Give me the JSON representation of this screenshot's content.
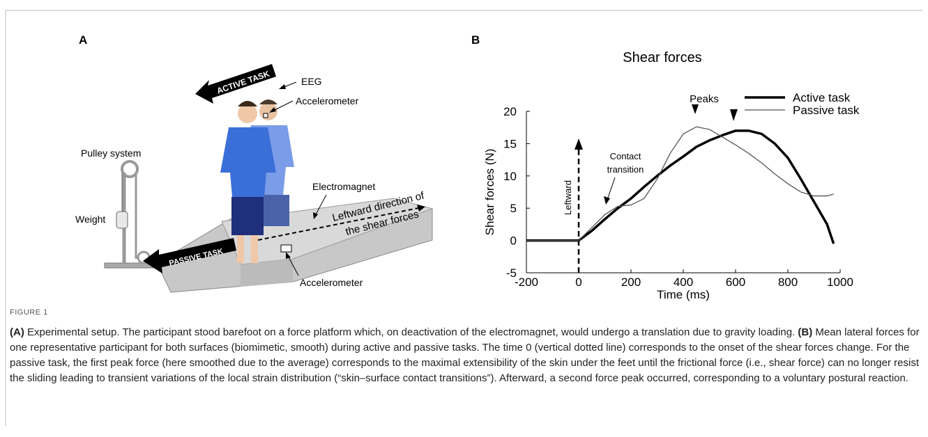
{
  "panel_a": {
    "label": "A",
    "active_task": "ACTIVE TASK",
    "eeg": "EEG",
    "accelerometer_head": "Accelerometer",
    "pulley": "Pulley system",
    "weight": "Weight",
    "electromagnet": "Electromagnet",
    "direction": [
      "Leftward direction of",
      "the shear forces"
    ],
    "passive_task": "PASSIVE TASK",
    "accelerometer_platform": "Accelerometer"
  },
  "panel_b": {
    "label": "B"
  },
  "chart_data": {
    "type": "line",
    "title": "Shear forces",
    "xlabel": "Time (ms)",
    "ylabel": "Shear forces (N)",
    "x": [
      -200,
      -150,
      -100,
      -50,
      0,
      50,
      100,
      150,
      200,
      250,
      300,
      350,
      400,
      450,
      500,
      550,
      600,
      650,
      700,
      750,
      800,
      850,
      900,
      950,
      975
    ],
    "series": [
      {
        "name": "Active task",
        "color": "#000000",
        "linewidth": 3.5,
        "values": [
          0,
          0,
          0,
          0,
          0,
          1.5,
          3.3,
          5,
          6.5,
          8.3,
          10,
          11.6,
          13,
          14.5,
          15.5,
          16.3,
          17,
          17,
          16.5,
          15,
          12.8,
          9.5,
          6,
          2.5,
          -0.5
        ]
      },
      {
        "name": "Passive task",
        "color": "#555555",
        "linewidth": 1.3,
        "values": [
          0,
          0,
          0,
          0,
          0,
          2,
          4,
          5.3,
          5.5,
          6.5,
          9.5,
          13.5,
          16.5,
          17.6,
          17.2,
          16,
          14.8,
          13.5,
          12,
          10.3,
          8.8,
          7.5,
          6.9,
          6.9,
          7.2
        ]
      }
    ],
    "xlim": [
      -200,
      1000
    ],
    "ylim": [
      -5,
      20
    ],
    "xticks": [
      -200,
      0,
      200,
      400,
      600,
      800,
      1000
    ],
    "yticks": [
      -5,
      0,
      5,
      10,
      15,
      20
    ],
    "legend": "upper right",
    "annotations": {
      "peaks": "Peaks",
      "contact": [
        "Contact",
        "transition"
      ],
      "leftward": "Leftward"
    }
  },
  "caption": {
    "label": "FIGURE 1",
    "parts": [
      "(A)",
      " Experimental setup. The participant stood barefoot on a force platform which, on deactivation of the electromagnet, would undergo a translation due to gravity loading. ",
      "(B)",
      " Mean lateral forces for one representative participant for both surfaces (biomimetic, smooth) during active and passive tasks. The time 0 (vertical dotted line) corresponds to the onset of the shear forces change. For the passive task, the first peak force (here smoothed due to the average) corresponds to the maximal extensibility of the skin under the feet until the frictional force (i.e., shear force) can no longer resist the sliding leading to transient variations of the local strain distribution (“skin–surface contact transitions”). Afterward, a second force peak occurred, corresponding to a voluntary postural reaction."
    ]
  }
}
